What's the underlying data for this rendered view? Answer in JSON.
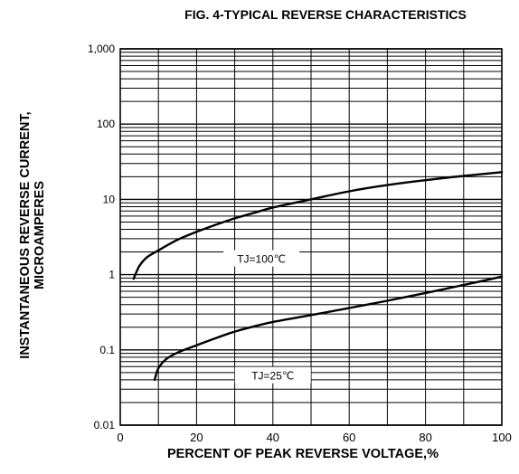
{
  "chart_data": {
    "type": "line",
    "title": "FIG. 4-TYPICAL REVERSE CHARACTERISTICS",
    "xlabel": "PERCENT OF PEAK REVERSE VOLTAGE,%",
    "ylabel_line1": "INSTANTANEOUS REVERSE CURRENT,",
    "ylabel_line2": "MICROAMPERES",
    "xlim": [
      0,
      100
    ],
    "ylim": [
      0.01,
      1000
    ],
    "y_scale": "log",
    "grid": true,
    "x_ticks": [
      {
        "value": 0,
        "label": "0"
      },
      {
        "value": 20,
        "label": "20"
      },
      {
        "value": 40,
        "label": "40"
      },
      {
        "value": 60,
        "label": "60"
      },
      {
        "value": 80,
        "label": "80"
      },
      {
        "value": 100,
        "label": "100"
      }
    ],
    "y_ticks": [
      {
        "value": 0.01,
        "label": "0.01"
      },
      {
        "value": 0.1,
        "label": "0.1"
      },
      {
        "value": 1,
        "label": "1"
      },
      {
        "value": 10,
        "label": "10"
      },
      {
        "value": 100,
        "label": "100"
      },
      {
        "value": 1000,
        "label": "1,000"
      }
    ],
    "series": [
      {
        "name": "TJ=100℃",
        "label_at": {
          "x": 37,
          "y": 1.6
        },
        "points": [
          [
            3.5,
            0.88
          ],
          [
            5,
            1.3
          ],
          [
            7,
            1.7
          ],
          [
            10,
            2.1
          ],
          [
            15,
            2.9
          ],
          [
            20,
            3.7
          ],
          [
            25,
            4.6
          ],
          [
            30,
            5.6
          ],
          [
            35,
            6.6
          ],
          [
            40,
            7.8
          ],
          [
            50,
            10
          ],
          [
            60,
            12.8
          ],
          [
            70,
            15.5
          ],
          [
            80,
            18
          ],
          [
            90,
            20.5
          ],
          [
            100,
            23
          ]
        ]
      },
      {
        "name": "TJ=25℃",
        "label_at": {
          "x": 40,
          "y": 0.045
        },
        "points": [
          [
            9,
            0.04
          ],
          [
            10,
            0.057
          ],
          [
            12,
            0.075
          ],
          [
            15,
            0.092
          ],
          [
            20,
            0.115
          ],
          [
            25,
            0.143
          ],
          [
            30,
            0.175
          ],
          [
            35,
            0.205
          ],
          [
            40,
            0.235
          ],
          [
            50,
            0.29
          ],
          [
            60,
            0.36
          ],
          [
            70,
            0.45
          ],
          [
            80,
            0.57
          ],
          [
            90,
            0.73
          ],
          [
            100,
            0.94
          ]
        ]
      }
    ]
  }
}
